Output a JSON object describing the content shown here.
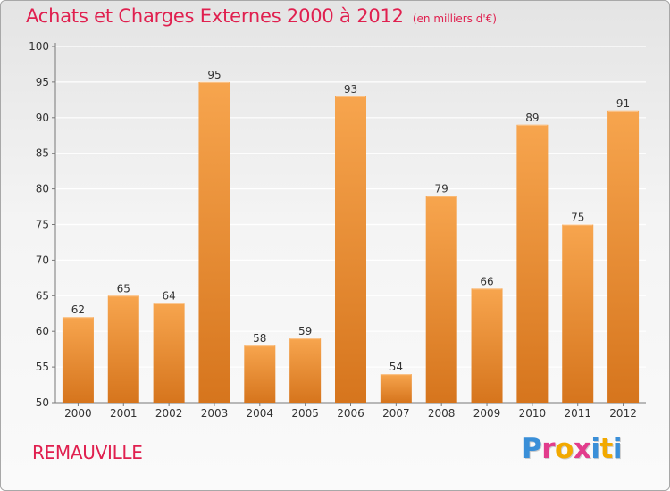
{
  "header": {
    "title": "Achats et Charges Externes 2000 à 2012",
    "subtitle": "(en milliers d'€)"
  },
  "footer": {
    "commune": "REMAUVILLE",
    "brand_letters": [
      "P",
      "r",
      "o",
      "x",
      "i",
      "t",
      "i"
    ],
    "brand_colors": [
      "#3a8fd8",
      "#e23c8c",
      "#f2a900",
      "#e23c8c",
      "#3a8fd8",
      "#f2a900",
      "#3a8fd8"
    ]
  },
  "colors": {
    "bar_light": "#f7a54e",
    "bar_dark": "#d6751d",
    "axis": "#777777",
    "grid": "#ffffff",
    "label": "#333333"
  },
  "chart_data": {
    "type": "bar",
    "categories": [
      "2000",
      "2001",
      "2002",
      "2003",
      "2004",
      "2005",
      "2006",
      "2007",
      "2008",
      "2009",
      "2010",
      "2011",
      "2012"
    ],
    "values": [
      62,
      65,
      64,
      95,
      58,
      59,
      93,
      54,
      79,
      66,
      89,
      75,
      91
    ],
    "data_labels": [
      "62",
      "65",
      "64",
      "95",
      "58",
      "59",
      "93",
      "54",
      "79",
      "66",
      "89",
      "75",
      "91"
    ],
    "yticks": [
      "50",
      "55",
      "60",
      "65",
      "70",
      "75",
      "80",
      "85",
      "90",
      "95",
      "100"
    ],
    "ylim": [
      50,
      100
    ],
    "grid": true,
    "legend": "none"
  }
}
